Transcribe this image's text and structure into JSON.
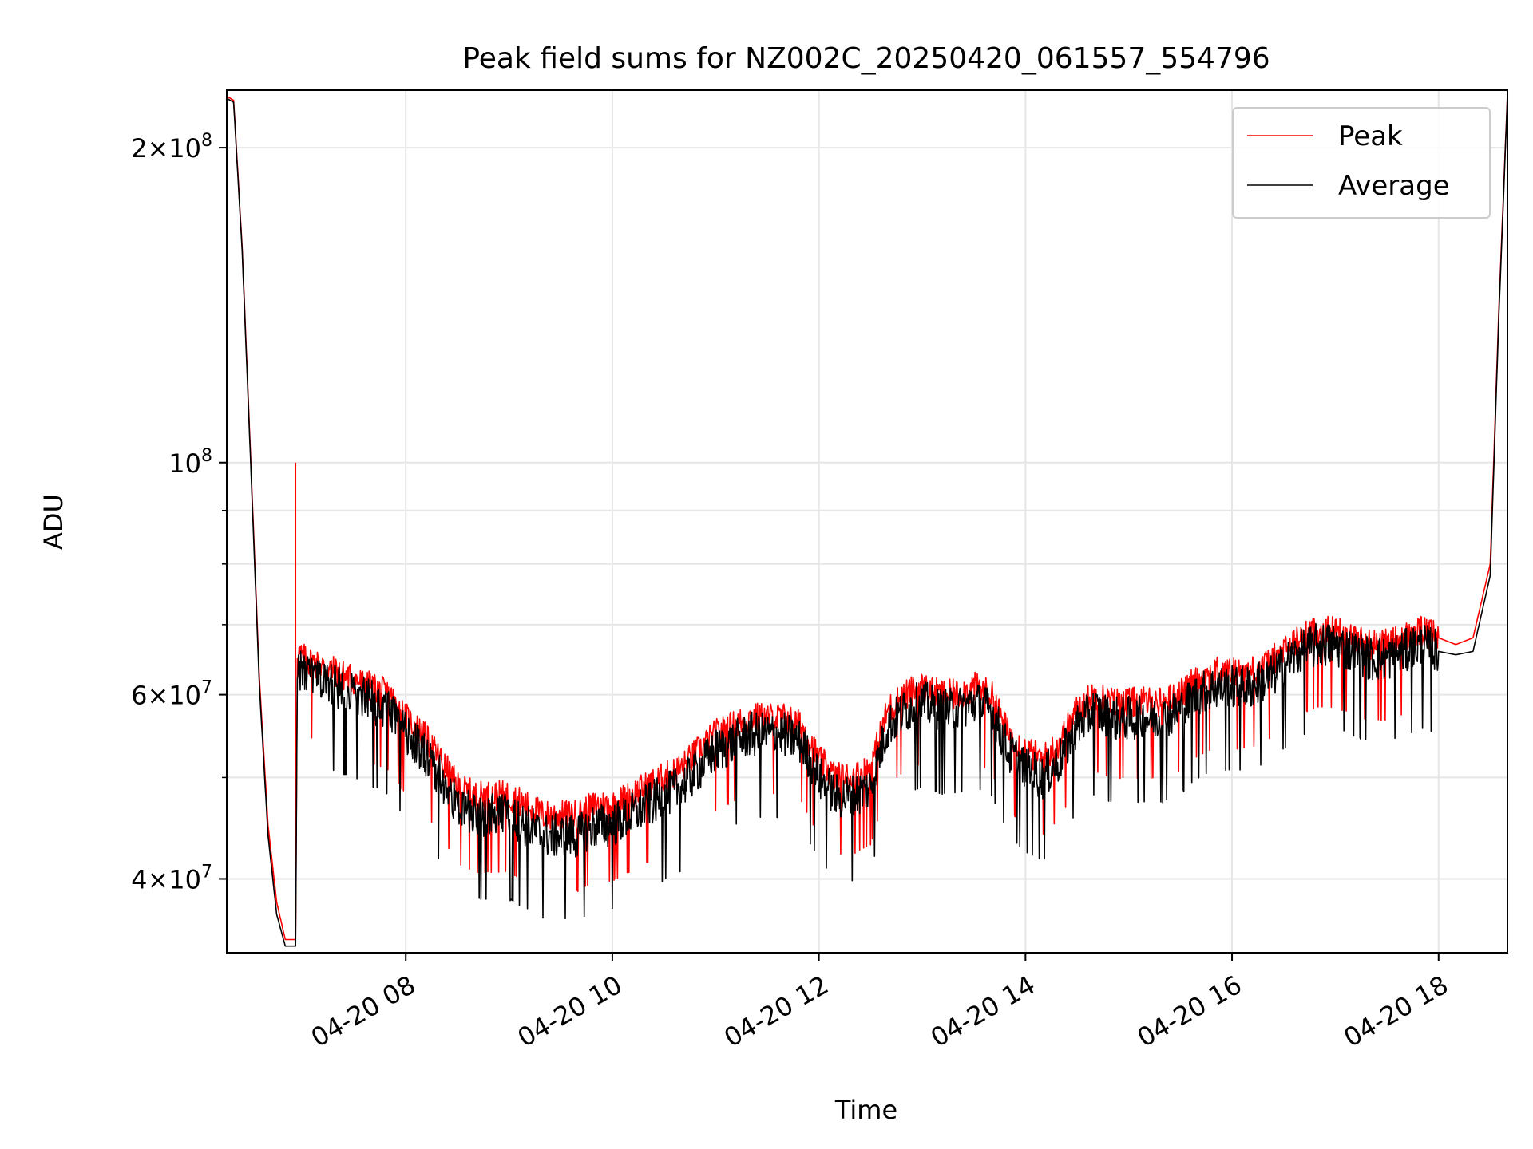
{
  "chart_data": {
    "type": "line",
    "title": "Peak field sums for NZ002C_20250420_061557_554796",
    "xlabel": "Time",
    "ylabel": "ADU",
    "yscale": "log",
    "grid": true,
    "legend_position": "top-right",
    "xlim": [
      "2025-04-20 06:16",
      "2025-04-20 18:40"
    ],
    "ylim": [
      34000000,
      227000000
    ],
    "x_ticks": [
      {
        "t": "2025-04-20 08:00",
        "label": "04-20 08"
      },
      {
        "t": "2025-04-20 10:00",
        "label": "04-20 10"
      },
      {
        "t": "2025-04-20 12:00",
        "label": "04-20 12"
      },
      {
        "t": "2025-04-20 14:00",
        "label": "04-20 14"
      },
      {
        "t": "2025-04-20 16:00",
        "label": "04-20 16"
      },
      {
        "t": "2025-04-20 18:00",
        "label": "04-20 18"
      }
    ],
    "y_ticks": [
      {
        "value": 40000000,
        "mantissa": "4",
        "base": "10",
        "exp": "7"
      },
      {
        "value": 60000000,
        "mantissa": "6",
        "base": "10",
        "exp": "7"
      },
      {
        "value": 100000000,
        "mantissa": "",
        "base": "10",
        "exp": "8"
      },
      {
        "value": 200000000,
        "mantissa": "2",
        "base": "10",
        "exp": "8"
      }
    ],
    "y_minor_ticks": [
      50000000,
      70000000,
      80000000,
      90000000
    ],
    "x": [
      "06:16",
      "06:20",
      "06:25",
      "06:30",
      "06:35",
      "06:40",
      "06:45",
      "06:50",
      "06:55",
      "06:56",
      "06:57",
      "07:00",
      "07:10",
      "07:20",
      "07:30",
      "07:40",
      "07:50",
      "08:00",
      "08:10",
      "08:20",
      "08:30",
      "08:40",
      "08:50",
      "09:00",
      "09:10",
      "09:20",
      "09:30",
      "09:40",
      "09:50",
      "10:00",
      "10:10",
      "10:20",
      "10:30",
      "10:40",
      "10:50",
      "11:00",
      "11:10",
      "11:20",
      "11:30",
      "11:40",
      "11:50",
      "12:00",
      "12:10",
      "12:20",
      "12:30",
      "12:40",
      "12:50",
      "13:00",
      "13:10",
      "13:20",
      "13:30",
      "13:40",
      "13:50",
      "14:00",
      "14:10",
      "14:20",
      "14:30",
      "14:40",
      "14:50",
      "15:00",
      "15:10",
      "15:20",
      "15:30",
      "15:40",
      "15:50",
      "16:00",
      "16:10",
      "16:20",
      "16:30",
      "16:40",
      "16:50",
      "17:00",
      "17:10",
      "17:20",
      "17:30",
      "17:40",
      "17:50",
      "18:00",
      "18:10",
      "18:20",
      "18:30",
      "18:35",
      "18:40"
    ],
    "series": [
      {
        "name": "Peak",
        "color": "#ff0000",
        "values": [
          224,
          222,
          160,
          100,
          62,
          45,
          38,
          35,
          35,
          35,
          66,
          65,
          64,
          63,
          62,
          61,
          60,
          57,
          55,
          52,
          49,
          48,
          48,
          48,
          47,
          46,
          46,
          46,
          47,
          47,
          48,
          49,
          50,
          51,
          53,
          55,
          56,
          57,
          57,
          57,
          56,
          52,
          50,
          50,
          51,
          58,
          60,
          61,
          60,
          60,
          61,
          60,
          55,
          53,
          52,
          54,
          58,
          60,
          59,
          59,
          59,
          59,
          60,
          62,
          63,
          63,
          63,
          64,
          66,
          68,
          69,
          69,
          68,
          67,
          67,
          68,
          69,
          68,
          67,
          68,
          80,
          140,
          225
        ],
        "spike": {
          "x": "06:56",
          "value": 100000000
        }
      },
      {
        "name": "Average",
        "color": "#000000",
        "values": [
          223,
          221,
          159,
          99,
          61,
          44,
          37,
          34.5,
          34.5,
          34.5,
          64,
          63,
          62,
          61,
          60,
          59,
          58,
          55,
          53,
          50,
          47,
          46,
          46,
          46,
          45,
          44,
          44,
          44,
          45,
          45,
          46,
          47,
          48,
          49,
          51,
          53,
          54,
          55,
          55,
          55,
          54,
          50,
          48,
          48,
          49,
          56,
          58,
          59,
          58,
          58,
          59,
          58,
          53,
          51,
          50,
          52,
          56,
          58,
          57,
          57,
          57,
          57,
          58,
          60,
          61,
          61,
          61,
          62,
          64,
          66,
          67,
          67,
          66,
          65,
          65,
          66,
          67,
          66,
          65.5,
          66,
          78,
          138,
          224
        ]
      }
    ],
    "value_unit_multiplier": 1000000
  }
}
